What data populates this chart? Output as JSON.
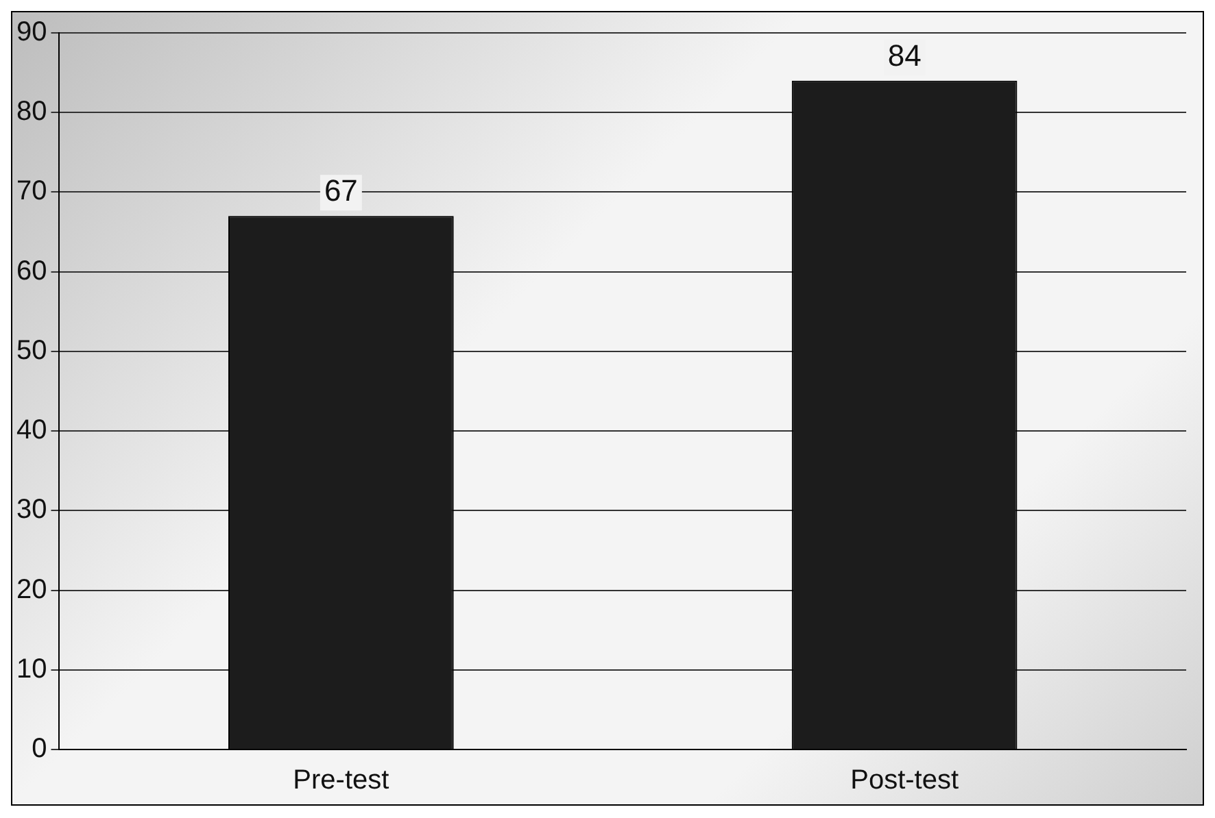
{
  "chart_data": {
    "type": "bar",
    "categories": [
      "Pre-test",
      "Post-test"
    ],
    "values": [
      67,
      84
    ],
    "color": "#1c1c1c",
    "ylim": [
      0,
      90
    ],
    "yticks": [
      0,
      10,
      20,
      30,
      40,
      50,
      60,
      70,
      80,
      90
    ],
    "grid": "y",
    "data_labels": true,
    "legend": false
  }
}
